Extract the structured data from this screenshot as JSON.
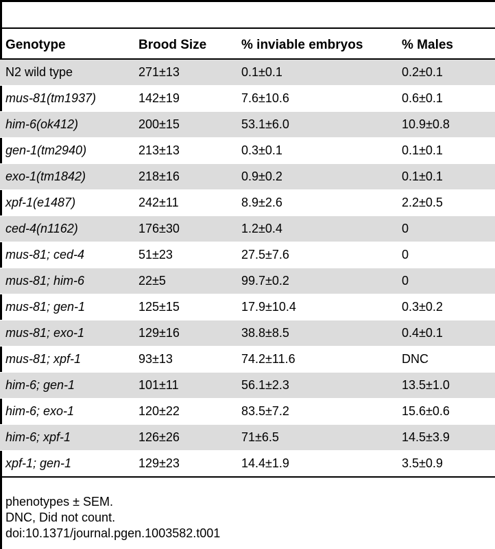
{
  "table": {
    "headers": [
      "Genotype",
      "Brood Size",
      "% inviable embryos",
      "% Males"
    ],
    "rows": [
      {
        "genotype": "N2 wild type",
        "italic": false,
        "brood": "271±13",
        "inviable": "0.1±0.1",
        "males": "0.2±0.1"
      },
      {
        "genotype": "mus-81(tm1937)",
        "italic": true,
        "brood": "142±19",
        "inviable": "7.6±10.6",
        "males": "0.6±0.1"
      },
      {
        "genotype": "him-6(ok412)",
        "italic": true,
        "brood": "200±15",
        "inviable": "53.1±6.0",
        "males": "10.9±0.8"
      },
      {
        "genotype": "gen-1(tm2940)",
        "italic": true,
        "brood": "213±13",
        "inviable": "0.3±0.1",
        "males": "0.1±0.1"
      },
      {
        "genotype": "exo-1(tm1842)",
        "italic": true,
        "brood": "218±16",
        "inviable": "0.9±0.2",
        "males": "0.1±0.1"
      },
      {
        "genotype": "xpf-1(e1487)",
        "italic": true,
        "brood": "242±11",
        "inviable": "8.9±2.6",
        "males": "2.2±0.5"
      },
      {
        "genotype": "ced-4(n1162)",
        "italic": true,
        "brood": "176±30",
        "inviable": "1.2±0.4",
        "males": "0"
      },
      {
        "genotype": "mus-81; ced-4",
        "italic": true,
        "brood": "51±23",
        "inviable": "27.5±7.6",
        "males": "0"
      },
      {
        "genotype": "mus-81; him-6",
        "italic": true,
        "brood": "22±5",
        "inviable": "99.7±0.2",
        "males": "0"
      },
      {
        "genotype": "mus-81; gen-1",
        "italic": true,
        "brood": "125±15",
        "inviable": "17.9±10.4",
        "males": "0.3±0.2"
      },
      {
        "genotype": "mus-81; exo-1",
        "italic": true,
        "brood": "129±16",
        "inviable": "38.8±8.5",
        "males": "0.4±0.1"
      },
      {
        "genotype": "mus-81; xpf-1",
        "italic": true,
        "brood": "93±13",
        "inviable": "74.2±11.6",
        "males": "DNC"
      },
      {
        "genotype": "him-6; gen-1",
        "italic": true,
        "brood": "101±11",
        "inviable": "56.1±2.3",
        "males": "13.5±1.0"
      },
      {
        "genotype": "him-6; exo-1",
        "italic": true,
        "brood": "120±22",
        "inviable": "83.5±7.2",
        "males": "15.6±0.6"
      },
      {
        "genotype": "him-6; xpf-1",
        "italic": true,
        "brood": "126±26",
        "inviable": "71±6.5",
        "males": "14.5±3.9"
      },
      {
        "genotype": "xpf-1; gen-1",
        "italic": true,
        "brood": "129±23",
        "inviable": "14.4±1.9",
        "males": "3.5±0.9"
      }
    ]
  },
  "footer": {
    "line1": "phenotypes ± SEM.",
    "line2": "DNC, Did not count.",
    "line3": "doi:10.1371/journal.pgen.1003582.t001"
  }
}
